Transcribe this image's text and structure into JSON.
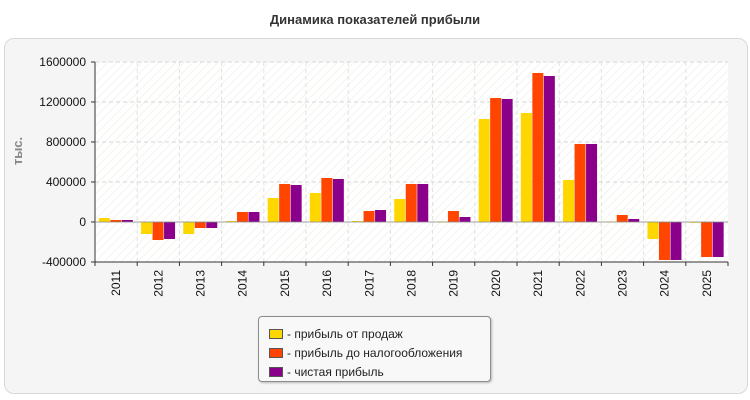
{
  "chart_data": {
    "type": "bar",
    "title": "Динамика показателей прибыли",
    "ylabel": "тыс.",
    "xlabel": "",
    "ylim": [
      -400000,
      1600000
    ],
    "yticks": [
      -400000,
      0,
      400000,
      800000,
      1200000,
      1600000
    ],
    "grid": true,
    "legend_position": "bottom-center",
    "categories": [
      "2011",
      "2012",
      "2013",
      "2014",
      "2015",
      "2016",
      "2017",
      "2018",
      "2019",
      "2020",
      "2021",
      "2022",
      "2023",
      "2024",
      "2025"
    ],
    "series": [
      {
        "name": "- прибыль от продаж",
        "color": "#ffd700",
        "values": [
          40000,
          -120000,
          -120000,
          10000,
          240000,
          290000,
          10000,
          230000,
          5000,
          1030000,
          1090000,
          420000,
          5000,
          -170000,
          -5000
        ]
      },
      {
        "name": "- прибыль до налогообложения",
        "color": "#ff4500",
        "values": [
          20000,
          -180000,
          -60000,
          100000,
          380000,
          440000,
          110000,
          380000,
          110000,
          1240000,
          1490000,
          780000,
          70000,
          -380000,
          -350000
        ]
      },
      {
        "name": "- чистая прибыль",
        "color": "#8b008b",
        "values": [
          20000,
          -170000,
          -60000,
          100000,
          370000,
          430000,
          120000,
          380000,
          50000,
          1230000,
          1460000,
          780000,
          30000,
          -380000,
          -350000
        ]
      }
    ]
  }
}
